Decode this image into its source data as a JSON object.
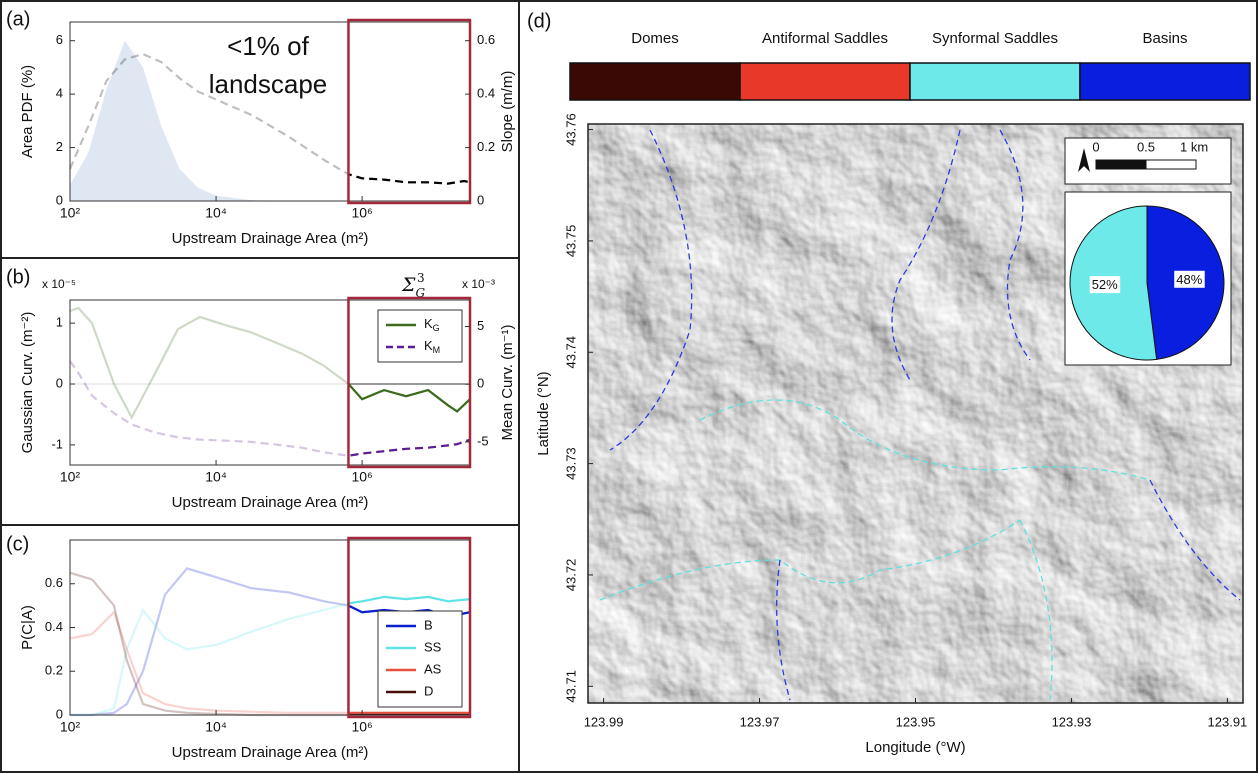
{
  "chart_data": [
    {
      "type": "line",
      "label": "(a)",
      "xscale": "log",
      "x": [
        100,
        178,
        316,
        562,
        1000,
        1778,
        3162,
        5623,
        10000,
        31623,
        100000,
        316228,
        650000,
        1000000,
        2000000,
        4000000,
        8000000,
        15000000,
        25000000,
        30000000
      ],
      "xlim": [
        100,
        30000000
      ],
      "xticks": [
        {
          "value": 100,
          "label": "10²"
        },
        {
          "value": 10000,
          "label": "10⁴"
        },
        {
          "value": 1000000,
          "label": "10⁶"
        }
      ],
      "xlabel": "Upstream Drainage Area (m²)",
      "ylabel": "Area PDF (%)",
      "ylim": [
        0,
        6.7
      ],
      "yticks": [
        0,
        2,
        4,
        6
      ],
      "y2label": "Slope (m/m)",
      "y2lim": [
        0,
        0.67
      ],
      "y2ticks": [
        0,
        0.2,
        0.4,
        0.6
      ],
      "highlight": {
        "xlim": [
          650000,
          30000000
        ],
        "color": "#a3283a"
      },
      "annotation": [
        "<1% of",
        "landscape"
      ],
      "series": [
        {
          "color": "#7f9fd0",
          "fill": true,
          "values": [
            0.6,
            1.8,
            4.2,
            6.0,
            5.0,
            2.8,
            1.2,
            0.5,
            0.2,
            0.03,
            0,
            0,
            0,
            0,
            0,
            0,
            0,
            0,
            0,
            0
          ]
        },
        {
          "color": "#000000",
          "dash": true,
          "axis": "y2",
          "values": [
            0.12,
            0.28,
            0.45,
            0.53,
            0.55,
            0.52,
            0.46,
            0.41,
            0.38,
            0.32,
            0.24,
            0.15,
            0.1,
            0.085,
            0.08,
            0.07,
            0.07,
            0.065,
            0.075,
            0.07
          ]
        }
      ]
    },
    {
      "type": "line",
      "label": "(b)",
      "xscale": "log",
      "x": [
        100,
        130,
        200,
        400,
        700,
        1500,
        3000,
        6000,
        15000,
        30000,
        60000,
        150000,
        300000,
        650000,
        1000000,
        2000000,
        4000000,
        8000000,
        15000000,
        20000000,
        30000000
      ],
      "xlim": [
        100,
        30000000
      ],
      "xticks": [
        {
          "value": 100,
          "label": "10²"
        },
        {
          "value": 10000,
          "label": "10⁴"
        },
        {
          "value": 1000000,
          "label": "10⁶"
        }
      ],
      "xlabel": "Upstream Drainage Area (m²)",
      "ylabel": "Gaussian Curv. (m⁻²)",
      "ylabel_color": "#3d6b1e",
      "y_multiplier": "x 10⁻⁵",
      "ylim": [
        -1.33,
        1.38
      ],
      "yticks": [
        -1,
        0,
        1
      ],
      "y2label": "Mean Curv. (m⁻¹)",
      "y2label_color": "#5b1d91",
      "y2_multiplier": "x 10⁻³",
      "y2lim": [
        -7,
        7.3
      ],
      "y2ticks": [
        -5,
        0,
        5
      ],
      "reference_line": 0,
      "highlight": {
        "xlim": [
          650000,
          30000000
        ],
        "color": "#a3283a"
      },
      "symbol": "ΣG3",
      "legend": "upper right",
      "legend_subscript": true,
      "series": [
        {
          "name": "KG",
          "color": "#3d6b1e",
          "values": [
            1.2,
            1.25,
            1.0,
            0.0,
            -0.55,
            0.2,
            0.9,
            1.1,
            0.95,
            0.85,
            0.7,
            0.5,
            0.3,
            0.0,
            -0.25,
            -0.1,
            -0.2,
            -0.1,
            -0.35,
            -0.45,
            -0.25
          ]
        },
        {
          "name": "KM",
          "color": "#5b1d91",
          "dash": true,
          "axis": "y2",
          "values": [
            2.0,
            1.0,
            -1.0,
            -2.5,
            -3.5,
            -4.2,
            -4.6,
            -4.8,
            -4.9,
            -5.0,
            -5.2,
            -5.5,
            -5.9,
            -6.2,
            -6.0,
            -5.8,
            -5.6,
            -5.5,
            -5.3,
            -5.2,
            -4.8
          ]
        }
      ]
    },
    {
      "type": "line",
      "label": "(c)",
      "xscale": "log",
      "x": [
        100,
        200,
        400,
        600,
        1000,
        2000,
        4000,
        10000,
        30000,
        100000,
        300000,
        650000,
        1000000,
        2000000,
        4000000,
        8000000,
        15000000,
        30000000
      ],
      "xlim": [
        100,
        30000000
      ],
      "xticks": [
        {
          "value": 100,
          "label": "10²"
        },
        {
          "value": 10000,
          "label": "10⁴"
        },
        {
          "value": 1000000,
          "label": "10⁶"
        }
      ],
      "xlabel": "Upstream Drainage Area (m²)",
      "ylabel": "P(C|A)",
      "ylim": [
        0,
        0.8
      ],
      "yticks": [
        0,
        0.2,
        0.4,
        0.6
      ],
      "highlight": {
        "xlim": [
          650000,
          30000000
        ],
        "color": "#a3283a"
      },
      "legend": "lower right",
      "series": [
        {
          "name": "B",
          "color": "#0a1fd0",
          "values": [
            0,
            0,
            0.01,
            0.05,
            0.2,
            0.55,
            0.67,
            0.63,
            0.58,
            0.56,
            0.52,
            0.5,
            0.47,
            0.48,
            0.47,
            0.48,
            0.45,
            0.47
          ]
        },
        {
          "name": "SS",
          "color": "#5fe3e6",
          "values": [
            0,
            0,
            0.03,
            0.3,
            0.48,
            0.35,
            0.3,
            0.32,
            0.38,
            0.44,
            0.48,
            0.51,
            0.52,
            0.54,
            0.53,
            0.54,
            0.52,
            0.53
          ]
        },
        {
          "name": "AS",
          "color": "#e8503e",
          "values": [
            0.35,
            0.37,
            0.47,
            0.3,
            0.1,
            0.05,
            0.03,
            0.02,
            0.015,
            0.01,
            0.01,
            0.01,
            0.01,
            0.01,
            0.01,
            0.01,
            0.01,
            0.01
          ]
        },
        {
          "name": "D",
          "color": "#4a0f08",
          "values": [
            0.65,
            0.62,
            0.5,
            0.25,
            0.05,
            0.02,
            0.01,
            0.005,
            0,
            0,
            0,
            0,
            0,
            0,
            0,
            0,
            0,
            0
          ]
        }
      ]
    },
    {
      "type": "map",
      "label": "(d)",
      "categories": [
        "Domes",
        "Antiformal Saddles",
        "Synformal Saddles",
        "Basins"
      ],
      "colors": [
        "#3b0905",
        "#e8382a",
        "#6ee9e9",
        "#0a1ee0"
      ],
      "xlabel": "Longitude (°W)",
      "xlim": [
        123.992,
        123.908
      ],
      "xticks": [
        123.99,
        123.97,
        123.95,
        123.93,
        123.91
      ],
      "ylabel": "Latitude (°N)",
      "ylim": [
        43.7085,
        43.7605
      ],
      "yticks": [
        43.71,
        43.72,
        43.73,
        43.74,
        43.75,
        43.76
      ],
      "scalebar": [
        0,
        0.5,
        {
          "value": 1,
          "label": "1 km"
        }
      ]
    },
    {
      "type": "pie",
      "values": [
        48,
        52
      ],
      "value_labels": [
        "48%",
        "52%"
      ],
      "colors": [
        "#0a1ee0",
        "#6ee9e9"
      ]
    }
  ]
}
